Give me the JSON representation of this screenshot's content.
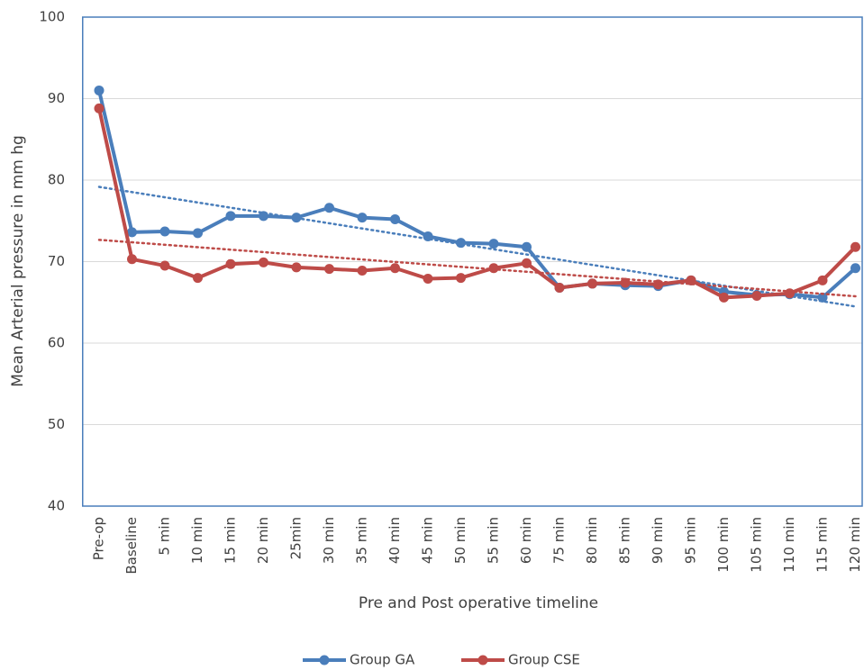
{
  "chart_data": {
    "type": "line",
    "x_label": "Pre and Post operative timeline",
    "y_label": "Mean Arterial pressure in mm hg",
    "categories": [
      "Pre-op",
      "Baseline",
      "5 min",
      "10 min",
      "15 min",
      "20 min",
      "25min",
      "30 min",
      "35 min",
      "40 min",
      "45 min",
      "50 min",
      "55 min",
      "60 min",
      "75 min",
      "80 min",
      "85 min",
      "90 min",
      "95 min",
      "100 min",
      "105 min",
      "110 min",
      "115 min",
      "120 min"
    ],
    "series": [
      {
        "name": "Group GA",
        "color": "#4a7ebb",
        "values": [
          91,
          73.6,
          73.7,
          73.5,
          75.6,
          75.6,
          75.4,
          76.6,
          75.4,
          75.2,
          73.1,
          72.3,
          72.2,
          71.8,
          66.8,
          67.3,
          67.1,
          67.0,
          67.7,
          66.3,
          65.9,
          66.0,
          65.6,
          69.2
        ]
      },
      {
        "name": "Group CSE",
        "color": "#be4b48",
        "values": [
          88.8,
          70.3,
          69.5,
          68.0,
          69.7,
          69.9,
          69.3,
          69.1,
          68.9,
          69.2,
          67.9,
          68.0,
          69.2,
          69.8,
          66.8,
          67.3,
          67.4,
          67.2,
          67.7,
          65.6,
          65.8,
          66.1,
          67.7,
          71.8
        ]
      }
    ],
    "ylim": [
      40,
      100
    ],
    "yticks": [
      40,
      50,
      60,
      70,
      80,
      90,
      100
    ],
    "grid": true,
    "trendline": "linear",
    "legend": "bottom"
  }
}
